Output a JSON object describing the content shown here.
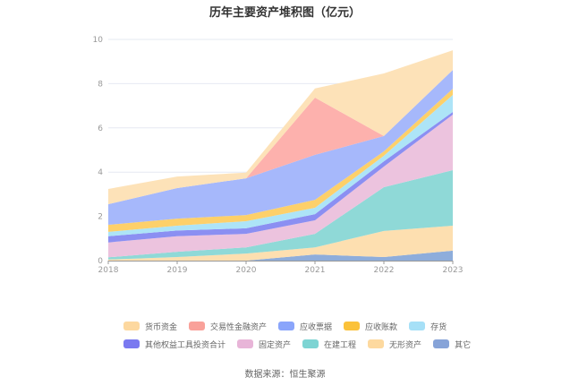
{
  "chart_data": {
    "type": "area",
    "stacked": true,
    "title": "历年主要资产堆积图（亿元）",
    "xlabel": "",
    "ylabel": "",
    "x": [
      "2018",
      "2019",
      "2020",
      "2021",
      "2022",
      "2023"
    ],
    "ylim": [
      0,
      10
    ],
    "yticks": [
      0,
      2,
      4,
      6,
      8,
      10
    ],
    "grid": true,
    "legend_position": "bottom",
    "series": [
      {
        "name": "其它",
        "color": "#8eaddb",
        "values": [
          0,
          0,
          0,
          0.28,
          0.16,
          0.45
        ]
      },
      {
        "name": "无形资产",
        "color": "#fddfb0",
        "values": [
          0.05,
          0.16,
          0.32,
          0.32,
          1.18,
          1.13
        ]
      },
      {
        "name": "在建工程",
        "color": "#8fd9d7",
        "values": [
          0.1,
          0.24,
          0.28,
          0.61,
          1.98,
          2.51
        ]
      },
      {
        "name": "固定资产",
        "color": "#ecc3de",
        "values": [
          0.67,
          0.7,
          0.61,
          0.61,
          0.93,
          2.51
        ]
      },
      {
        "name": "其他权益工具投资合计",
        "color": "#8b8ff2",
        "values": [
          0.28,
          0.26,
          0.25,
          0.28,
          0.24,
          0.12
        ]
      },
      {
        "name": "存货",
        "color": "#ade4f7",
        "values": [
          0.2,
          0.22,
          0.32,
          0.29,
          0.25,
          0.77
        ]
      },
      {
        "name": "应收账款",
        "color": "#fdd06a",
        "values": [
          0.32,
          0.32,
          0.28,
          0.36,
          0.2,
          0.28
        ]
      },
      {
        "name": "应收票据",
        "color": "#a6b8fb",
        "values": [
          0.93,
          1.38,
          1.66,
          2.03,
          0.69,
          0.85
        ]
      },
      {
        "name": "交易性金融资产",
        "color": "#fdb1ad",
        "values": [
          0,
          0,
          0,
          2.59,
          0,
          0
        ]
      },
      {
        "name": "货币资金",
        "color": "#fde2b8",
        "values": [
          0.69,
          0.52,
          0.26,
          0.41,
          2.83,
          0.89
        ]
      }
    ],
    "legend_order": [
      "货币资金",
      "交易性金融资产",
      "应收票据",
      "应收账款",
      "存货",
      "其他权益工具投资合计",
      "固定资产",
      "在建工程",
      "无形资产",
      "其它"
    ],
    "legend_colors": {
      "货币资金": "#fdd89f",
      "交易性金融资产": "#f9a19a",
      "应收票据": "#8aa5fb",
      "应收账款": "#fbc23a",
      "存货": "#a6e0f7",
      "其他权益工具投资合计": "#7a79f0",
      "固定资产": "#e8b5d8",
      "在建工程": "#7dd4d3",
      "无形资产": "#fdd99f",
      "其它": "#86a3d8"
    }
  },
  "source": "数据来源：恒生聚源"
}
